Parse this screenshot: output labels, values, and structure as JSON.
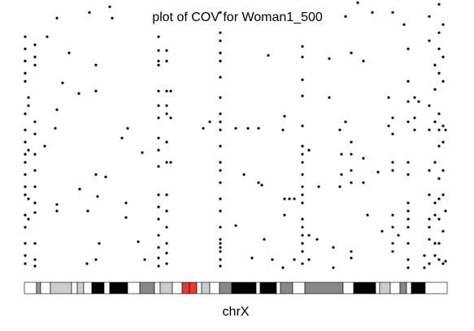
{
  "chart_data": {
    "type": "scatter",
    "title": "plot of COV for Woman1_500",
    "x_label": "chrX",
    "xlim": [
      0,
      156
    ],
    "ylim": [
      0,
      100
    ],
    "color": "#000000",
    "x": [
      0.3,
      0.3,
      0.3,
      0.3,
      0.3,
      0.3,
      0.3,
      0.3,
      0.3,
      0.3,
      0.3,
      0.3,
      0.3,
      0.3,
      0.3,
      0.3,
      0.3,
      0.3,
      1.5,
      1.5,
      1.5,
      1.5,
      1.5,
      3.9,
      3.9,
      3.9,
      3.9,
      3.9,
      3.9,
      3.9,
      3.9,
      3.9,
      3.9,
      3.9,
      3.9,
      3.9,
      8.4,
      12,
      14.1,
      16.5,
      20.1,
      24,
      26.4,
      26.4,
      26.4,
      27,
      27.6,
      26.4,
      23.1,
      23.4,
      20.4,
      12,
      12,
      7.5,
      12,
      11.4,
      31.5,
      32.4,
      30,
      36,
      38.1,
      37.5,
      37.5,
      42,
      43.5,
      44.4,
      49.5,
      49.5,
      49.5,
      49.5,
      49.5,
      49.5,
      49.5,
      49.5,
      49.5,
      49.5,
      49.5,
      49.5,
      49.5,
      49.5,
      49.5,
      49.5,
      49.5,
      52.5,
      52.5,
      52.5,
      52.5,
      52.5,
      52.5,
      52.5,
      52.5,
      52.5,
      52.5,
      52.5,
      52.5,
      52.5,
      54,
      54,
      54,
      72.3,
      72.3,
      72.3,
      72.3,
      72.3,
      72.3,
      72.3,
      72.3,
      72.3,
      72.3,
      72.3,
      72.3,
      72.3,
      72.3,
      72.3,
      72.3,
      72.3,
      72.3,
      72.3,
      72.3,
      72.3,
      72.3,
      72.3,
      68.4,
      66,
      78,
      78,
      82.5,
      86.4,
      86.4,
      87.6,
      81,
      84,
      90,
      88.5,
      91.5,
      95.4,
      95.4,
      96,
      96,
      96,
      97.8,
      99.6,
      99.6,
      102.6,
      102.6,
      102.6,
      102.6,
      102.6,
      102.6,
      102.6,
      102.6,
      102.6,
      102.6,
      102.6,
      102.6,
      102.6,
      102.6,
      102.6,
      102.6,
      102.6,
      102.6,
      105,
      105,
      105,
      108,
      108.6,
      112.5,
      112.5,
      114,
      114,
      116.4,
      116.4,
      117,
      117,
      118.5,
      118.5,
      120.6,
      120.6,
      120.6,
      120.6,
      120.6,
      120.6,
      120.6,
      123,
      125.1,
      125.1,
      125.1,
      126.6,
      128.4,
      130.5,
      132,
      134.4,
      134.4,
      135.9,
      135.9,
      135.9,
      135.9,
      135.9,
      135.9,
      135.9,
      135.9,
      135.9,
      138,
      140.1,
      141.6,
      141.6,
      141.6,
      141.6,
      141.6,
      141.6,
      141.6,
      141.6,
      141.6,
      141.6,
      141.6,
      141.6,
      141.6,
      144,
      144,
      144,
      145.5,
      147.6,
      147.6,
      149.4,
      149.4,
      149.4,
      149.4,
      149.4,
      149.4,
      149.4,
      149.4,
      149.4,
      149.4,
      151.5,
      151.5,
      151.5,
      151.5,
      151.5,
      151.5,
      151.5,
      151.5,
      153,
      153,
      153,
      153,
      153,
      153,
      153,
      153,
      153,
      153,
      153,
      153,
      154.5,
      154.5,
      154.5,
      154.5,
      154.5,
      154.5,
      154.5,
      154.5,
      154.5,
      155.4,
      155.4,
      155.4
    ],
    "values": [
      87,
      82.5,
      78,
      73.5,
      70.5,
      58.5,
      52.5,
      48,
      43.5,
      40.5,
      36,
      31.5,
      28.5,
      21,
      16.5,
      10.5,
      6,
      3,
      64.5,
      61.5,
      45,
      27,
      19.5,
      84,
      79.5,
      76.5,
      55.5,
      51,
      43.5,
      37.5,
      31.5,
      25.5,
      21.9,
      10.5,
      4.5,
      2.1,
      87,
      93.9,
      69.9,
      81,
      66,
      96,
      76.5,
      66.9,
      36,
      27.9,
      10.5,
      4.5,
      3,
      22.5,
      30.6,
      24.9,
      22.5,
      46.5,
      60,
      53.1,
      98.1,
      93.9,
      35.1,
      49.5,
      53.1,
      25.5,
      20.1,
      11.1,
      44.1,
      4.5,
      87,
      81.9,
      78,
      76.5,
      66.9,
      61.5,
      57,
      49.5,
      45,
      39,
      28.5,
      24,
      19.5,
      13.5,
      9,
      5.1,
      2.1,
      81.9,
      78,
      66.9,
      61.5,
      58.5,
      48,
      40.5,
      28.5,
      22.5,
      16.5,
      10.5,
      6.9,
      3,
      66.9,
      57,
      40.5,
      96,
      88.5,
      85.5,
      81,
      78,
      72,
      64.5,
      58.5,
      55.5,
      52.5,
      46.5,
      40.5,
      37.5,
      33,
      27,
      22.5,
      16.5,
      12,
      10.5,
      9,
      7.5,
      4.5,
      2.1,
      55.5,
      53.1,
      53.1,
      17.1,
      53.1,
      53.1,
      33,
      32.1,
      36,
      5.1,
      80.1,
      12,
      4.5,
      1.5,
      52.5,
      57.6,
      27,
      21,
      27,
      27,
      4.5,
      83.4,
      79.5,
      71.1,
      65.1,
      54,
      46.5,
      43.5,
      40.5,
      36,
      31.5,
      28.5,
      25.5,
      19.5,
      16.5,
      13.5,
      10.5,
      7.5,
      3,
      45,
      13.5,
      4.5,
      12,
      31.5,
      78.9,
      64.5,
      9,
      1.5,
      52.5,
      31.5,
      43.5,
      36,
      94.5,
      55.5,
      81,
      48,
      43.5,
      37.5,
      33,
      7.5,
      5.1,
      99.6,
      78,
      42,
      33,
      21,
      96,
      36.9,
      15,
      64.5,
      54,
      96,
      57,
      51,
      40.5,
      37.5,
      21,
      16.5,
      10.5,
      7.5,
      13.5,
      91.5,
      82.5,
      70.5,
      63,
      55.5,
      40.5,
      36,
      25.5,
      22.5,
      19.5,
      16.5,
      10.5,
      4.5,
      1.5,
      64.5,
      57,
      52.5,
      63,
      6,
      1.5,
      94.5,
      85.5,
      61.5,
      52.5,
      37.5,
      28.5,
      19.5,
      16.5,
      12,
      3,
      76.5,
      67.5,
      55.5,
      40.5,
      25.5,
      21,
      10.5,
      6,
      99,
      88.5,
      82.5,
      73.5,
      58.5,
      52.5,
      46.5,
      34.5,
      27,
      19.5,
      10.5,
      4.5,
      91.5,
      79.5,
      70.5,
      54,
      48,
      37.5,
      28.5,
      15,
      3,
      52.5,
      22.5,
      3.9
    ],
    "bands": [
      {
        "start": 0,
        "end": 4.5,
        "color": "#ffffff"
      },
      {
        "start": 4.5,
        "end": 6,
        "color": "#999999"
      },
      {
        "start": 6,
        "end": 9.6,
        "color": "#ffffff"
      },
      {
        "start": 9.6,
        "end": 17.4,
        "color": "#cccccc"
      },
      {
        "start": 17.4,
        "end": 19.5,
        "color": "#ffffff"
      },
      {
        "start": 19.5,
        "end": 21.9,
        "color": "#cccccc"
      },
      {
        "start": 21.9,
        "end": 24.9,
        "color": "#ffffff"
      },
      {
        "start": 24.9,
        "end": 29.4,
        "color": "#000000"
      },
      {
        "start": 29.4,
        "end": 31.5,
        "color": "#ffffff"
      },
      {
        "start": 31.5,
        "end": 38.1,
        "color": "#000000"
      },
      {
        "start": 38.1,
        "end": 42.6,
        "color": "#ffffff"
      },
      {
        "start": 42.6,
        "end": 48,
        "color": "#888888"
      },
      {
        "start": 48,
        "end": 50.1,
        "color": "#ffffff"
      },
      {
        "start": 50.1,
        "end": 54.6,
        "color": "#cccccc"
      },
      {
        "start": 54.6,
        "end": 58.2,
        "color": "#ffffff"
      },
      {
        "start": 58.2,
        "end": 60.9,
        "color": "#e53935"
      },
      {
        "start": 60.9,
        "end": 63.6,
        "color": "#e53935"
      },
      {
        "start": 63.6,
        "end": 65.4,
        "color": "#ffffff"
      },
      {
        "start": 65.4,
        "end": 68.4,
        "color": "#cccccc"
      },
      {
        "start": 68.4,
        "end": 72,
        "color": "#ffffff"
      },
      {
        "start": 72,
        "end": 76.5,
        "color": "#888888"
      },
      {
        "start": 76.5,
        "end": 85.5,
        "color": "#000000"
      },
      {
        "start": 85.5,
        "end": 87,
        "color": "#ffffff"
      },
      {
        "start": 87,
        "end": 93,
        "color": "#000000"
      },
      {
        "start": 93,
        "end": 94.5,
        "color": "#ffffff"
      },
      {
        "start": 94.5,
        "end": 99,
        "color": "#888888"
      },
      {
        "start": 99,
        "end": 103.5,
        "color": "#ffffff"
      },
      {
        "start": 103.5,
        "end": 117.6,
        "color": "#888888"
      },
      {
        "start": 117.6,
        "end": 121.5,
        "color": "#ffffff"
      },
      {
        "start": 121.5,
        "end": 129.6,
        "color": "#000000"
      },
      {
        "start": 129.6,
        "end": 131.1,
        "color": "#ffffff"
      },
      {
        "start": 131.1,
        "end": 135,
        "color": "#cccccc"
      },
      {
        "start": 135,
        "end": 138.6,
        "color": "#ffffff"
      },
      {
        "start": 138.6,
        "end": 141,
        "color": "#888888"
      },
      {
        "start": 141,
        "end": 142.8,
        "color": "#ffffff"
      },
      {
        "start": 142.8,
        "end": 147.9,
        "color": "#000000"
      },
      {
        "start": 147.9,
        "end": 156,
        "color": "#ffffff"
      }
    ]
  }
}
